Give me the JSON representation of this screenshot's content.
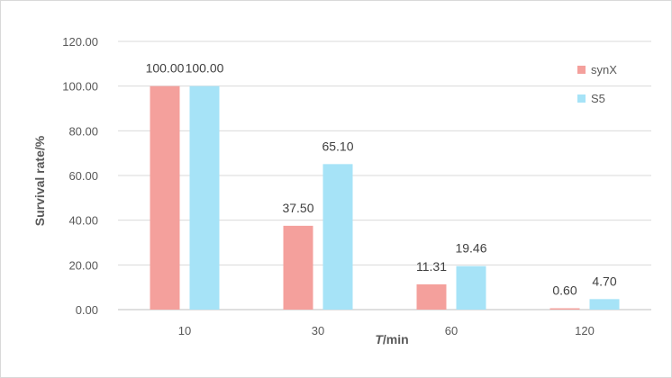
{
  "chart_data": {
    "type": "bar",
    "title": "",
    "xlabel": {
      "italic": "T",
      "rest": "/min"
    },
    "ylabel": "Survival rate/%",
    "categories": [
      "10",
      "30",
      "60",
      "120"
    ],
    "series": [
      {
        "name": "synX",
        "color": "#f4a09c",
        "values": [
          100.0,
          37.5,
          11.31,
          0.6
        ]
      },
      {
        "name": "S5",
        "color": "#a6e3f7",
        "values": [
          100.0,
          65.1,
          19.46,
          4.7
        ]
      }
    ],
    "ylim": [
      0,
      120
    ],
    "yticks": [
      "0.00",
      "20.00",
      "40.00",
      "60.00",
      "80.00",
      "100.00",
      "120.00"
    ],
    "grid": true,
    "legend_position": "top-right",
    "colors": {
      "grid": "#d9d9d9",
      "axis": "#bfbfbf"
    }
  }
}
